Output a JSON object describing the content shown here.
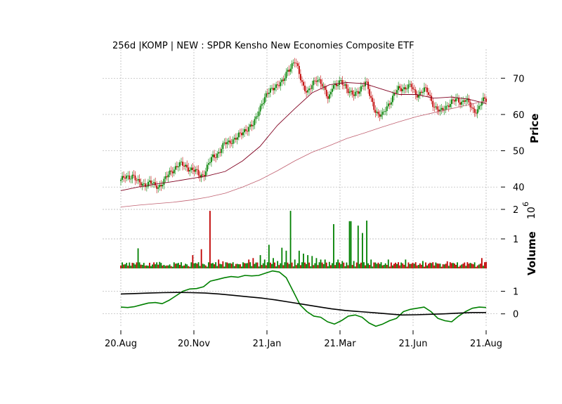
{
  "chart_data": {
    "type": "line",
    "title": "256d |KOMP | NEW : SPDR Kensho New Economies Composite ETF",
    "x_tick_labels": [
      "20.Aug",
      "20.Nov",
      "21.Jan",
      "21.Mar",
      "21.Jun",
      "21.Aug"
    ],
    "grid": true,
    "panels": [
      {
        "name": "price",
        "ylabel": "Price",
        "ylim": [
          35,
          78
        ],
        "yticks": [
          40,
          50,
          60,
          70
        ],
        "series": [
          {
            "name": "close",
            "style": "candles",
            "values": [
              42.0,
              42.4,
              42.8,
              43.5,
              41.2,
              40.6,
              40.9,
              41.5,
              40.2,
              40.1,
              41.3,
              42.6,
              44.0,
              45.5,
              46.3,
              45.8,
              45.5,
              45.0,
              44.2,
              43.0,
              43.7,
              46.0,
              48.0,
              49.0,
              50.3,
              51.8,
              52.3,
              53.2,
              53.6,
              54.5,
              56.0,
              56.6,
              57.0,
              60.5,
              63.5,
              65.0,
              66.5,
              68.0,
              68.3,
              68.6,
              72.0,
              73.5,
              74.5,
              71.0,
              68.0,
              66.0,
              67.5,
              70.0,
              69.5,
              66.5,
              64.0,
              68.5,
              68.0,
              68.7,
              68.2,
              66.5,
              65.0,
              66.0,
              68.0,
              69.0,
              65.0,
              62.0,
              60.0,
              59.5,
              62.0,
              64.0,
              65.8,
              67.0,
              67.3,
              67.8,
              67.5,
              65.5,
              66.0,
              66.8,
              66.0,
              63.5,
              61.5,
              60.5,
              62.0,
              63.0,
              63.5,
              64.0,
              63.5,
              64.3,
              62.5,
              61.0,
              61.5,
              63.5,
              64.0
            ]
          },
          {
            "name": "sma_fast",
            "values": [
              39.0,
              40.0,
              40.8,
              41.5,
              42.3,
              43.1,
              44.3,
              47.2,
              51.2,
              57.0,
              61.6,
              66.0,
              68.2,
              68.8,
              68.5,
              67.0,
              65.5,
              65.5,
              64.5,
              64.8,
              64.2,
              63.0
            ]
          },
          {
            "name": "sma_slow",
            "values": [
              34.5,
              35.0,
              35.4,
              35.8,
              36.4,
              37.2,
              38.3,
              40.0,
              42.0,
              44.5,
              47.2,
              49.6,
              51.4,
              53.4,
              54.9,
              56.5,
              58.0,
              59.4,
              60.5,
              61.6,
              62.7,
              63.8
            ]
          }
        ]
      },
      {
        "name": "volume",
        "ylabel": "Volume",
        "y_scale_label": "10",
        "y_scale_exponent": "6",
        "ylim": [
          0,
          2.0
        ],
        "yticks": [
          1,
          2
        ],
        "spikes_millions": [
          0.1,
          0.14,
          0.2,
          0.18,
          0.68,
          0.12,
          0.1,
          0.08,
          0.14,
          0.22,
          0.12,
          0.1,
          0.08,
          0.16,
          0.12,
          0.1,
          0.08,
          0.45,
          0.16,
          0.65,
          0.1,
          1.95,
          0.14,
          0.3,
          0.24,
          0.2,
          0.16,
          0.15,
          0.14,
          0.18,
          0.3,
          0.35,
          0.2,
          0.45,
          0.3,
          0.8,
          0.35,
          0.25,
          0.7,
          0.6,
          1.95,
          0.3,
          0.6,
          0.5,
          0.45,
          0.42,
          0.35,
          0.3,
          0.3,
          0.22,
          1.5,
          0.3,
          0.25,
          0.2,
          1.6,
          0.25,
          1.45,
          1.2,
          1.62,
          0.3,
          0.2,
          0.15,
          0.12,
          0.3,
          0.1,
          0.15,
          0.2,
          0.3,
          0.15,
          0.16,
          0.12,
          0.25,
          0.1,
          0.18,
          0.2,
          0.16,
          0.14,
          0.24,
          0.18,
          0.12,
          0.1,
          0.2,
          0.16,
          0.14,
          0.1,
          0.35,
          0.22
        ]
      },
      {
        "name": "oscillator",
        "ylim": [
          -0.6,
          1.95
        ],
        "yticks": [
          0,
          1
        ],
        "series": [
          {
            "name": "fast",
            "color": "#008000",
            "values": [
              0.3,
              0.28,
              0.32,
              0.4,
              0.48,
              0.5,
              0.45,
              0.6,
              0.8,
              1.0,
              1.1,
              1.12,
              1.2,
              1.45,
              1.52,
              1.6,
              1.65,
              1.62,
              1.7,
              1.68,
              1.7,
              1.8,
              1.9,
              1.85,
              1.6,
              1.0,
              0.4,
              0.1,
              -0.1,
              -0.15,
              -0.35,
              -0.45,
              -0.3,
              -0.1,
              -0.05,
              -0.15,
              -0.4,
              -0.55,
              -0.45,
              -0.3,
              -0.2,
              0.1,
              0.2,
              0.25,
              0.3,
              0.1,
              -0.2,
              -0.3,
              -0.35,
              -0.1,
              0.1,
              0.25,
              0.3,
              0.28
            ]
          },
          {
            "name": "slow",
            "color": "#000000",
            "values": [
              0.88,
              0.9,
              0.92,
              0.94,
              0.95,
              0.94,
              0.92,
              0.88,
              0.82,
              0.76,
              0.7,
              0.62,
              0.52,
              0.42,
              0.32,
              0.22,
              0.15,
              0.1,
              0.05,
              0.0,
              -0.05,
              -0.04,
              -0.02,
              0.0,
              0.03,
              0.06,
              0.06
            ]
          }
        ]
      }
    ]
  },
  "colors": {
    "up": "#008000",
    "down": "#c00000",
    "sma_fast": "#800020",
    "sma_slow": "#c06070",
    "grid": "#b0b0b0"
  }
}
